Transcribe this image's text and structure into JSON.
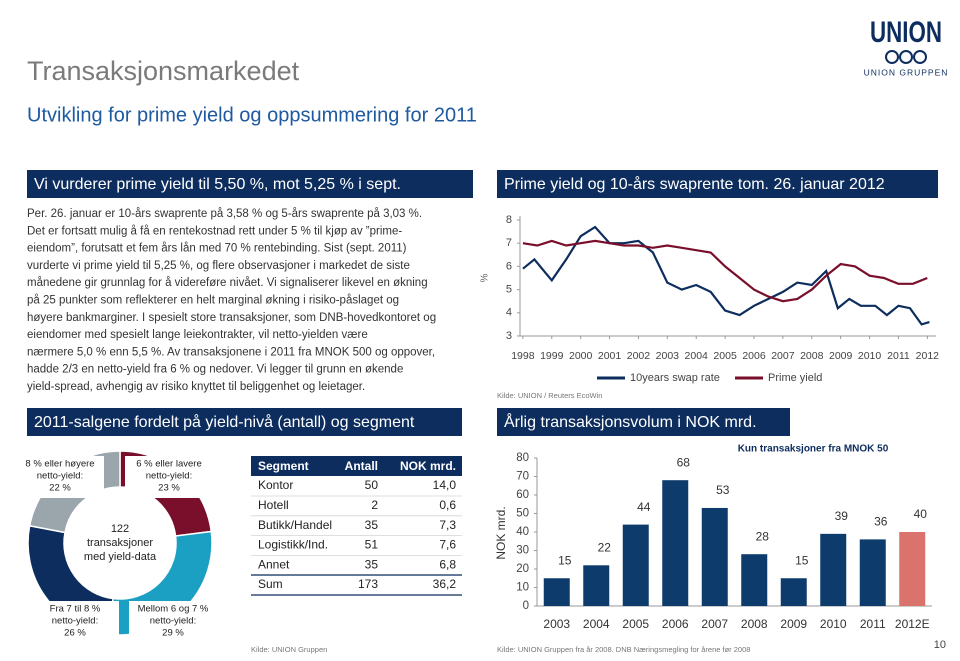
{
  "header": {
    "title": "Transaksjonsmarkedet",
    "subtitle": "Utvikling for prime yield og oppsummering for 2011",
    "logo": [
      "UNION",
      "UNION GRUPPEN"
    ]
  },
  "sections": [
    "Vi vurderer prime yield til 5,50 %, mot 5,25 % i sept.",
    "Prime yield og 10-års swaprente tom. 26. januar 2012",
    "2011-salgene fordelt på yield-nivå (antall) og segment",
    "Årlig transaksjonsvolum i NOK mrd."
  ],
  "body": [
    "Per. 26. januar er 10-års swaprente på 3,58 % og 5-års swaprente på 3,03 %.",
    "Det er fortsatt mulig å få en rentekostnad rett under 5 % til kjøp av ”prime-",
    "eiendom”, forutsatt et fem års lån med 70 % rentebinding. Sist (sept. 2011)",
    "vurderte vi prime yield til 5,25 %, og flere observasjoner i markedet de siste",
    "månedene gir grunnlag for å videreføre nivået. Vi signaliserer likevel en økning",
    "på 25 punkter som reflekterer en helt marginal økning i risiko-påslaget og",
    "høyere bankmarginer. I spesielt store transaksjoner, som DNB-hovedkontoret og",
    "eiendomer med spesielt lange leiekontrakter, vil netto-yielden være",
    "nærmere 5,0 % enn 5,5 %. Av transaksjonene i 2011 fra MNOK 500 og oppover,",
    "hadde 2/3 en netto-yield fra 6 % og nedover. Vi legger til grunn en økende",
    "yield-spread, avhengig av risiko knyttet til beliggenhet og leietager."
  ],
  "chart_data": [
    {
      "type": "line",
      "ylabel": "%",
      "source": "Kilde: UNION / Reuters EcoWin",
      "xlim": [
        1997.9,
        2012.3
      ],
      "xticks": [
        1998,
        1999,
        2000,
        2001,
        2002,
        2003,
        2004,
        2005,
        2006,
        2007,
        2008,
        2009,
        2010,
        2011,
        2012
      ],
      "ylim": [
        3,
        8
      ],
      "yticks": [
        3,
        4,
        5,
        6,
        7,
        8
      ],
      "series": [
        {
          "name": "10years swap rate",
          "color": "#0d2d5e",
          "x": [
            1998,
            1998.4,
            1998.8,
            1999,
            1999.5,
            2000,
            2000.5,
            2001,
            2001.5,
            2002,
            2002.5,
            2003,
            2003.5,
            2004,
            2004.5,
            2005,
            2005.5,
            2006,
            2006.5,
            2007,
            2007.5,
            2008,
            2008.5,
            2008.9,
            2009.3,
            2009.7,
            2010.2,
            2010.6,
            2011,
            2011.4,
            2011.8,
            2012.07
          ],
          "values": [
            5.9,
            6.3,
            5.7,
            5.4,
            6.3,
            7.3,
            7.7,
            7.0,
            7.0,
            7.1,
            6.6,
            5.3,
            5.0,
            5.2,
            4.9,
            4.1,
            3.9,
            4.3,
            4.6,
            4.9,
            5.3,
            5.2,
            5.8,
            4.2,
            4.6,
            4.3,
            4.3,
            3.9,
            4.3,
            4.2,
            3.5,
            3.6
          ]
        },
        {
          "name": "Prime yield",
          "color": "#7a0f2b",
          "x": [
            1998,
            1998.5,
            1999,
            1999.5,
            2000,
            2000.5,
            2001,
            2001.5,
            2002,
            2002.5,
            2003,
            2003.5,
            2004,
            2004.5,
            2005,
            2005.5,
            2006,
            2006.5,
            2007,
            2007.5,
            2008,
            2008.5,
            2009,
            2009.5,
            2010,
            2010.5,
            2011,
            2011.5,
            2012
          ],
          "values": [
            7.0,
            6.9,
            7.1,
            6.9,
            7.0,
            7.1,
            7.0,
            6.9,
            6.9,
            6.8,
            6.9,
            6.8,
            6.7,
            6.6,
            6.0,
            5.5,
            5.0,
            4.7,
            4.5,
            4.6,
            5.0,
            5.6,
            6.1,
            6.0,
            5.6,
            5.5,
            5.25,
            5.25,
            5.5
          ]
        }
      ]
    },
    {
      "type": "pie",
      "categories": [
        [
          "6 % eller lavere",
          "netto-yield:"
        ],
        [
          "Mellom 6 og 7 %",
          "netto-yield:"
        ],
        [
          "Fra 7 til 8 %",
          "netto-yield:"
        ],
        [
          "8 % eller høyere",
          "netto-yield:"
        ]
      ],
      "values": [
        23,
        29,
        26,
        22
      ],
      "value_labels": [
        "23 %",
        "29 %",
        "26 %",
        "22 %"
      ],
      "colors": [
        "#7a0f2b",
        "#1b9fc2",
        "#0d2d5e",
        "#9aa5ac"
      ],
      "center_label": [
        "122",
        "transaksjoner",
        "med yield-data"
      ]
    },
    {
      "type": "bar",
      "title": "Kun transaksjoner fra MNOK 50",
      "ylabel": "NOK mrd.",
      "source": "Kilde: UNION Gruppen  fra år 2008. DNB Næringsmegling for årene før 2008",
      "categories": [
        "2003",
        "2004",
        "2005",
        "2006",
        "2007",
        "2008",
        "2009",
        "2010",
        "2011",
        "2012E"
      ],
      "values": [
        15,
        22,
        44,
        68,
        53,
        28,
        15,
        39,
        36,
        40
      ],
      "colors": [
        "#0d3b6b",
        "#0d3b6b",
        "#0d3b6b",
        "#0d3b6b",
        "#0d3b6b",
        "#0d3b6b",
        "#0d3b6b",
        "#0d3b6b",
        "#0d3b6b",
        "#d9736b"
      ],
      "ylim": [
        0,
        80
      ],
      "yticks": [
        0,
        10,
        20,
        30,
        40,
        50,
        60,
        70,
        80
      ]
    }
  ],
  "table": {
    "header": [
      "Segment",
      "Antall",
      "NOK mrd."
    ],
    "rows": [
      [
        "Kontor",
        "50",
        "14,0"
      ],
      [
        "Hotell",
        "2",
        "0,6"
      ],
      [
        "Butikk/Handel",
        "35",
        "7,3"
      ],
      [
        "Logistikk/Ind.",
        "51",
        "7,6"
      ],
      [
        "Annet",
        "35",
        "6,8"
      ],
      [
        "Sum",
        "173",
        "36,2"
      ]
    ],
    "source": "Kilde: UNION Gruppen"
  },
  "page_number": 10
}
